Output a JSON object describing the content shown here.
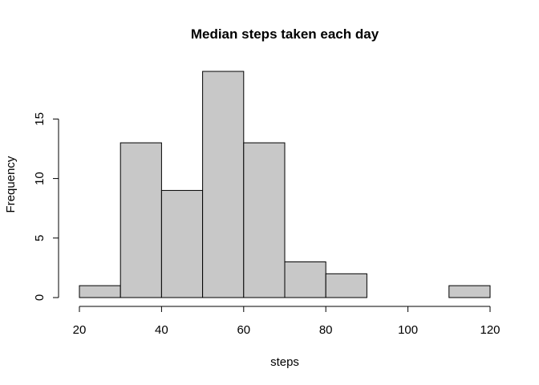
{
  "chart_data": {
    "type": "bar",
    "title": "Median steps taken each day",
    "xlabel": "steps",
    "ylabel": "Frequency",
    "bins": [
      {
        "from": 20,
        "to": 30,
        "count": 1
      },
      {
        "from": 30,
        "to": 40,
        "count": 13
      },
      {
        "from": 40,
        "to": 50,
        "count": 9
      },
      {
        "from": 50,
        "to": 60,
        "count": 19
      },
      {
        "from": 60,
        "to": 70,
        "count": 13
      },
      {
        "from": 70,
        "to": 80,
        "count": 3
      },
      {
        "from": 80,
        "to": 90,
        "count": 2
      },
      {
        "from": 90,
        "to": 100,
        "count": 0
      },
      {
        "from": 100,
        "to": 110,
        "count": 0
      },
      {
        "from": 110,
        "to": 120,
        "count": 1
      }
    ],
    "x_ticks": [
      "20",
      "40",
      "60",
      "80",
      "100",
      "120"
    ],
    "y_ticks": [
      "0",
      "5",
      "10",
      "15"
    ],
    "xlim": [
      20,
      120
    ],
    "ylim": [
      0,
      19
    ],
    "bar_color": "#c8c8c8",
    "grid": false
  }
}
